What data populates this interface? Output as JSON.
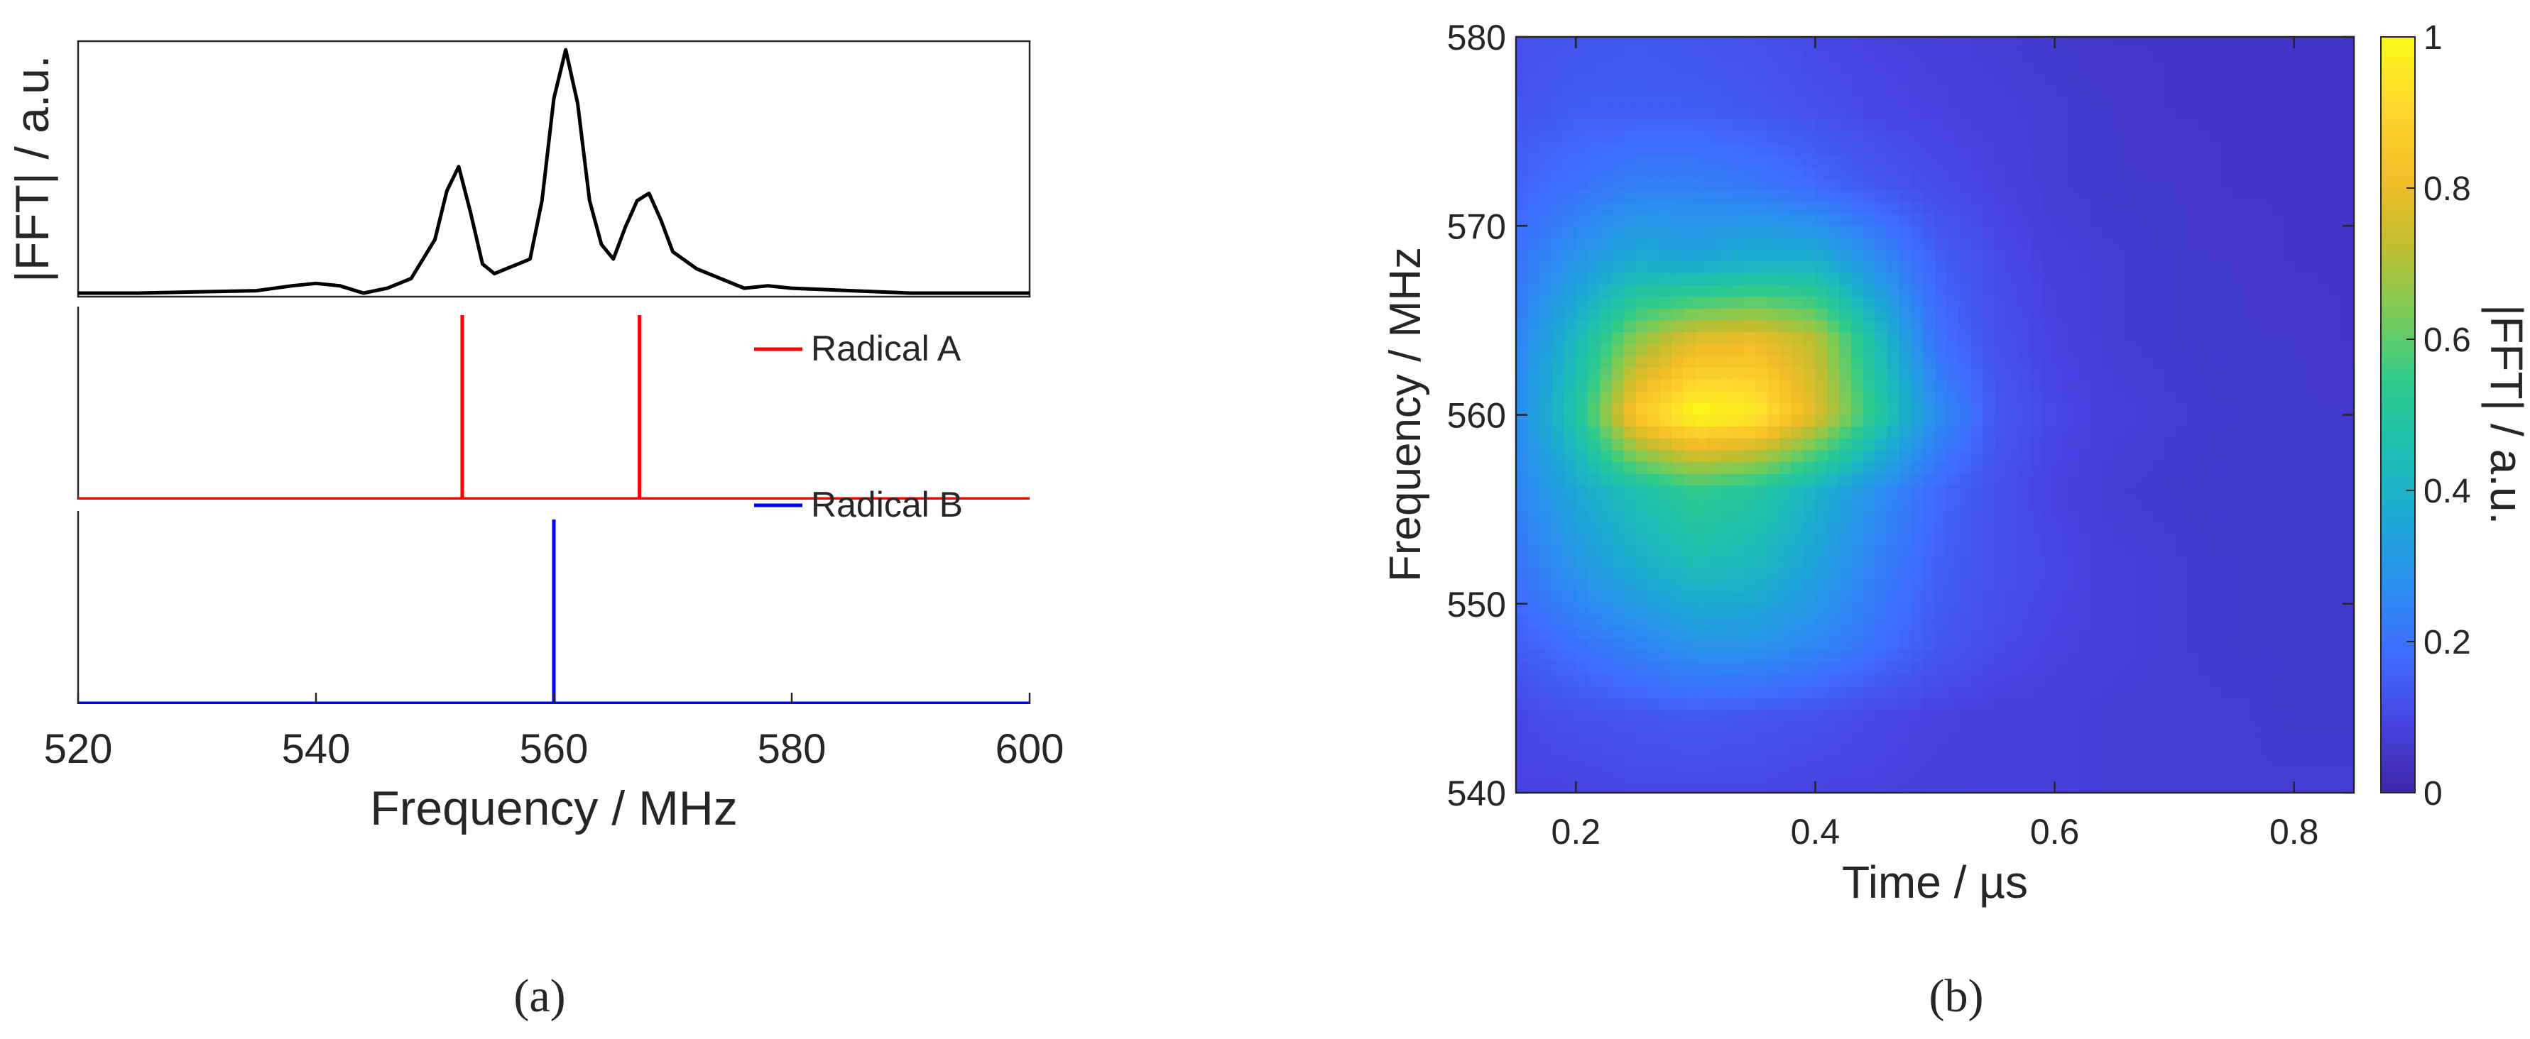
{
  "panel_labels": {
    "a": "(a)",
    "b": "(b)"
  },
  "chart_data": [
    {
      "id": "a",
      "type": "line",
      "xlabel": "Frequency / MHz",
      "ylabel": "|FFT| / a.u.",
      "xlim": [
        520,
        600
      ],
      "xticks": [
        "520",
        "540",
        "560",
        "580",
        "600"
      ],
      "grid": false,
      "subplots": [
        {
          "name": "",
          "color": "#000000",
          "ylim": [
            0,
            1.05
          ],
          "x": [
            520,
            525,
            530,
            535,
            538,
            540,
            542,
            544,
            546,
            548,
            550,
            551,
            552,
            553,
            554,
            555,
            556,
            557,
            558,
            559,
            560,
            561,
            562,
            563,
            564,
            565,
            566,
            567,
            568,
            569,
            570,
            572,
            574,
            576,
            578,
            580,
            585,
            590,
            595,
            600
          ],
          "y": [
            0.0,
            0.0,
            0.005,
            0.01,
            0.03,
            0.04,
            0.03,
            0.0,
            0.02,
            0.06,
            0.22,
            0.42,
            0.52,
            0.33,
            0.12,
            0.08,
            0.1,
            0.12,
            0.14,
            0.38,
            0.8,
            1.0,
            0.78,
            0.38,
            0.2,
            0.14,
            0.27,
            0.38,
            0.41,
            0.3,
            0.17,
            0.1,
            0.06,
            0.02,
            0.03,
            0.02,
            0.01,
            0.0,
            0.0,
            0.0
          ]
        },
        {
          "name": "Radical A",
          "color": "#ff0000",
          "ylim": [
            0,
            1.05
          ],
          "x": [
            520,
            552.3,
            552.3,
            552.3,
            567.2,
            567.2,
            567.2,
            600
          ],
          "y": [
            0,
            0,
            1,
            0,
            0,
            1,
            0,
            0
          ]
        },
        {
          "name": "Radical B",
          "color": "#0000ff",
          "ylim": [
            0,
            1.05
          ],
          "x": [
            520,
            560.0,
            560.0,
            560.0,
            600
          ],
          "y": [
            0,
            0,
            1,
            0,
            0
          ]
        }
      ]
    },
    {
      "id": "b",
      "type": "heatmap",
      "xlabel": "Time / µs",
      "ylabel": "Frequency / MHz",
      "colorbar_label": "|FFT| / a.u.",
      "xlim": [
        0.15,
        0.85
      ],
      "ylim": [
        540,
        580
      ],
      "xticks": [
        "0.2",
        "0.4",
        "0.6",
        "0.8"
      ],
      "yticks": [
        "540",
        "550",
        "560",
        "570",
        "580"
      ],
      "clim": [
        0,
        1
      ],
      "cticks": [
        "0",
        "0.2",
        "0.4",
        "0.6",
        "0.8",
        "1"
      ],
      "colormap": [
        "#3e26a8",
        "#4743e0",
        "#3e6cfe",
        "#2a8ef0",
        "#1ca9d4",
        "#1dbfb0",
        "#2fcb8b",
        "#7ccb56",
        "#c2bd2e",
        "#f6bd27",
        "#fed82c",
        "#f9fb15"
      ],
      "x": [
        0.15,
        0.2,
        0.25,
        0.3,
        0.35,
        0.4,
        0.45,
        0.5,
        0.55,
        0.6,
        0.65,
        0.7,
        0.75,
        0.8,
        0.85
      ],
      "y": [
        580,
        576,
        572,
        568,
        564,
        560,
        556,
        552,
        548,
        544,
        540
      ],
      "z": [
        [
          0.12,
          0.13,
          0.14,
          0.13,
          0.12,
          0.1,
          0.09,
          0.08,
          0.07,
          0.06,
          0.05,
          0.05,
          0.05,
          0.05,
          0.05
        ],
        [
          0.13,
          0.15,
          0.15,
          0.15,
          0.14,
          0.12,
          0.1,
          0.09,
          0.08,
          0.07,
          0.06,
          0.05,
          0.05,
          0.05,
          0.05
        ],
        [
          0.16,
          0.2,
          0.24,
          0.24,
          0.22,
          0.18,
          0.14,
          0.11,
          0.09,
          0.07,
          0.06,
          0.06,
          0.05,
          0.05,
          0.05
        ],
        [
          0.2,
          0.3,
          0.38,
          0.36,
          0.4,
          0.4,
          0.28,
          0.16,
          0.11,
          0.08,
          0.07,
          0.06,
          0.06,
          0.05,
          0.05
        ],
        [
          0.24,
          0.42,
          0.66,
          0.78,
          0.8,
          0.72,
          0.45,
          0.2,
          0.12,
          0.09,
          0.07,
          0.06,
          0.06,
          0.06,
          0.05
        ],
        [
          0.26,
          0.48,
          0.86,
          1.0,
          0.96,
          0.78,
          0.52,
          0.28,
          0.14,
          0.1,
          0.08,
          0.07,
          0.06,
          0.06,
          0.06
        ],
        [
          0.24,
          0.36,
          0.46,
          0.54,
          0.5,
          0.4,
          0.28,
          0.18,
          0.12,
          0.09,
          0.07,
          0.06,
          0.06,
          0.06,
          0.06
        ],
        [
          0.2,
          0.3,
          0.38,
          0.44,
          0.42,
          0.34,
          0.24,
          0.16,
          0.12,
          0.1,
          0.08,
          0.07,
          0.06,
          0.06,
          0.06
        ],
        [
          0.15,
          0.2,
          0.25,
          0.3,
          0.3,
          0.26,
          0.2,
          0.14,
          0.11,
          0.09,
          0.08,
          0.07,
          0.06,
          0.06,
          0.06
        ],
        [
          0.1,
          0.12,
          0.13,
          0.14,
          0.13,
          0.12,
          0.1,
          0.09,
          0.08,
          0.08,
          0.07,
          0.07,
          0.07,
          0.06,
          0.06
        ],
        [
          0.09,
          0.09,
          0.1,
          0.1,
          0.1,
          0.09,
          0.09,
          0.08,
          0.08,
          0.08,
          0.07,
          0.07,
          0.07,
          0.07,
          0.07
        ]
      ]
    }
  ]
}
